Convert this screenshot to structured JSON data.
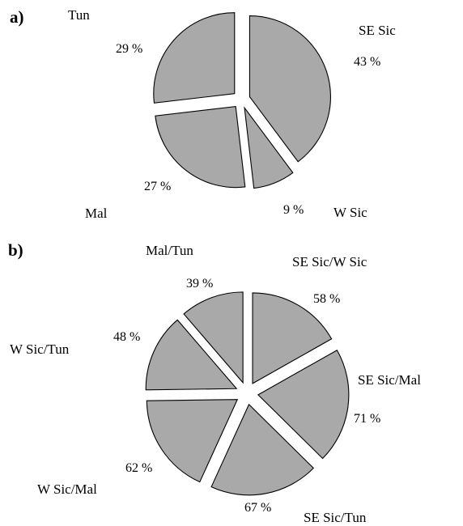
{
  "chart_data": [
    {
      "type": "pie",
      "panel": "a)",
      "slices": [
        {
          "label": "SE Sic",
          "value": 43,
          "value_label": "43 %"
        },
        {
          "label": "W Sic",
          "value": 9,
          "value_label": "9 %"
        },
        {
          "label": "Mal",
          "value": 27,
          "value_label": "27 %"
        },
        {
          "label": "Tun",
          "value": 29,
          "value_label": "29 %"
        }
      ],
      "exploded": true,
      "colors": {
        "fill": "#a9a9a9",
        "stroke": "#000000"
      }
    },
    {
      "type": "pie",
      "panel": "b)",
      "slices": [
        {
          "label": "SE Sic/W Sic",
          "value": 58,
          "value_label": "58 %"
        },
        {
          "label": "SE Sic/Mal",
          "value": 71,
          "value_label": "71 %"
        },
        {
          "label": "SE Sic/Tun",
          "value": 67,
          "value_label": "67 %"
        },
        {
          "label": "W Sic/Mal",
          "value": 62,
          "value_label": "62 %"
        },
        {
          "label": "W Sic/Tun",
          "value": 48,
          "value_label": "48 %"
        },
        {
          "label": "Mal/Tun",
          "value": 39,
          "value_label": "39 %"
        }
      ],
      "exploded": true,
      "colors": {
        "fill": "#a9a9a9",
        "stroke": "#000000"
      }
    }
  ]
}
